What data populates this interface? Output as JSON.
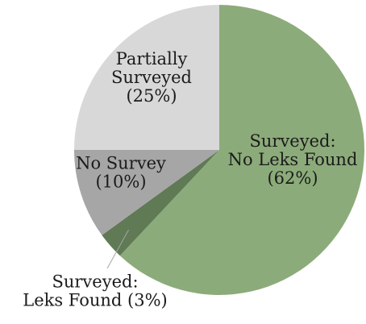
{
  "chart_data": {
    "type": "pie",
    "title": "",
    "slices": [
      {
        "label": "Surveyed: No Leks Found (62%)",
        "label_lines": [
          "Surveyed:",
          "No Leks Found",
          "(62%)"
        ],
        "value": 62,
        "color": "#8cab7a"
      },
      {
        "label": "Surveyed: Leks Found (3%)",
        "label_lines": [
          "Surveyed:",
          "Leks Found (3%)"
        ],
        "value": 3,
        "color": "#5f7a55"
      },
      {
        "label": "No Survey (10%)",
        "label_lines": [
          "No Survey",
          "(10%)"
        ],
        "value": 10,
        "color": "#a6a6a6"
      },
      {
        "label": "Partially Surveyed (25%)",
        "label_lines": [
          "Partially",
          "Surveyed",
          "(25%)"
        ],
        "value": 25,
        "color": "#d8d8d8"
      }
    ],
    "start_direction": "12 o'clock",
    "order": "clockwise",
    "legend": "none",
    "labels": "data labels on slices; leader line to the small slice"
  }
}
